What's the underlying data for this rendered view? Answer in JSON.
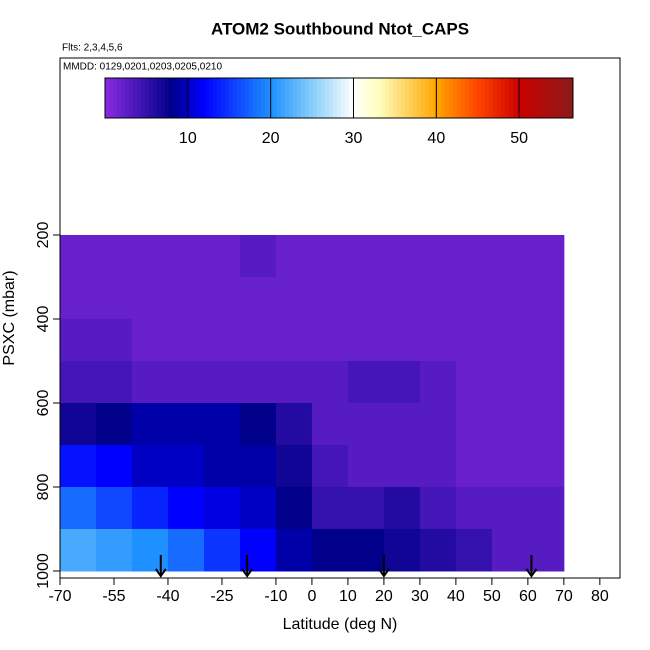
{
  "chart_data": {
    "type": "heatmap",
    "title": "ATOM2 Southbound Ntot_CAPS",
    "subtitle": "Flts: 2,3,4,5,6",
    "annotation": "MMDD: 0129,0201,0203,0205,0210",
    "x_label": "Latitude (deg N)",
    "y_label": "PSXC (mbar)",
    "xlim": [
      -70,
      85.6
    ],
    "ylim": [
      1016.7,
      -221.4
    ],
    "xticks": [
      -70,
      -55,
      -40,
      -25,
      -10,
      0,
      10,
      20,
      30,
      40,
      50,
      60,
      70,
      80
    ],
    "yticks": [
      200,
      400,
      600,
      800,
      1000
    ],
    "x_edges": [
      -70,
      -60,
      -50,
      -40,
      -30,
      -20,
      -10,
      0,
      10,
      20,
      30,
      40,
      50,
      60,
      70
    ],
    "y_edges": [
      200,
      300,
      400,
      500,
      600,
      700,
      800,
      900,
      1000
    ],
    "z": [
      [
        2,
        2,
        2,
        2,
        2,
        3,
        2,
        2,
        2,
        2,
        2,
        2,
        2,
        2
      ],
      [
        2,
        2,
        2,
        2,
        2,
        2,
        2,
        2,
        2,
        2,
        2,
        2,
        2,
        2
      ],
      [
        3,
        3,
        2,
        2,
        2,
        2,
        2,
        2,
        2,
        2,
        2,
        2,
        2,
        2
      ],
      [
        4,
        4,
        3,
        3,
        3,
        3,
        3,
        3,
        4,
        4,
        3,
        2,
        2,
        2
      ],
      [
        7,
        8,
        9,
        9,
        9,
        8,
        6,
        3,
        3,
        3,
        3,
        2,
        2,
        2
      ],
      [
        13,
        12,
        10,
        10,
        9,
        9,
        7,
        4,
        3,
        3,
        3,
        2,
        2,
        2
      ],
      [
        18,
        16,
        14,
        12,
        11,
        10,
        8,
        5,
        5,
        6,
        4,
        3,
        3,
        3
      ],
      [
        22,
        21,
        20,
        18,
        15,
        12,
        9,
        8,
        8,
        7,
        6,
        5,
        3,
        3
      ]
    ],
    "colorbar_lim": [
      0,
      56.5
    ],
    "colorbar_ticks": [
      10,
      20,
      30,
      40,
      50
    ],
    "colorscale": [
      [
        0,
        "#8a2be2"
      ],
      [
        8,
        "#00008b"
      ],
      [
        12,
        "#0000ff"
      ],
      [
        20,
        "#1e90ff"
      ],
      [
        25,
        "#87cefa"
      ],
      [
        30,
        "#ffffff"
      ],
      [
        33,
        "#ffffc0"
      ],
      [
        40,
        "#ffa500"
      ],
      [
        45,
        "#ff4500"
      ],
      [
        50,
        "#cc0000"
      ],
      [
        56.5,
        "#8b1a1a"
      ]
    ],
    "marker_lats": [
      -42,
      -18,
      20,
      61
    ]
  }
}
